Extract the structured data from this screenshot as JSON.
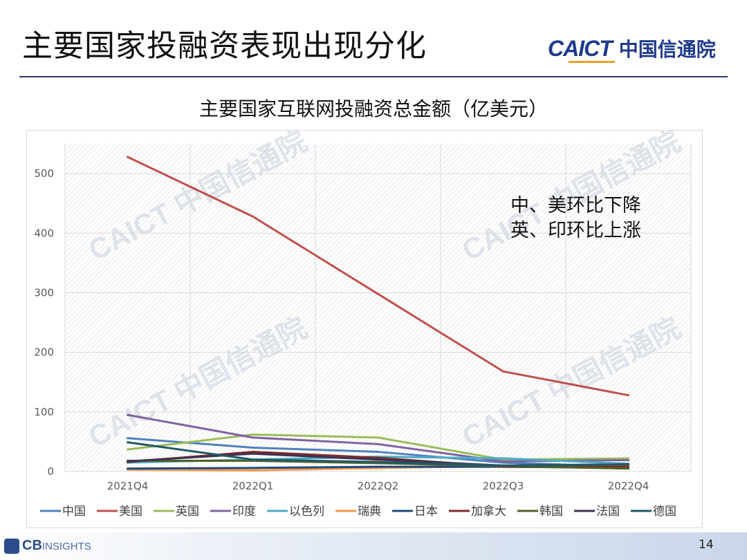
{
  "slide": {
    "title": "主要国家投融资表现出现分化",
    "logo": {
      "en": "CAICT",
      "cn": "中国信通院"
    },
    "page_number": "14",
    "source_logo": {
      "bold": "CB",
      "thin": "INSIGHTS"
    },
    "watermark": "CAICT 中国信通院",
    "annotation": [
      "中、美环比下降",
      "英、印环比上涨"
    ]
  },
  "colors": {
    "brand": "#1f3a8a",
    "accent": "#e8a020"
  },
  "chart_data": {
    "type": "line",
    "title": "主要国家互联网投融资总金额（亿美元）",
    "categories": [
      "2021Q4",
      "2022Q1",
      "2022Q2",
      "2022Q3",
      "2022Q4"
    ],
    "ylim": [
      0,
      550
    ],
    "yticks": [
      0,
      100,
      200,
      300,
      400,
      500
    ],
    "grid": true,
    "legend": "bottom",
    "series": [
      {
        "name": "中国",
        "color": "#4f81bd",
        "values": [
          56,
          40,
          33,
          15,
          8
        ]
      },
      {
        "name": "美国",
        "color": "#c0504d",
        "values": [
          528,
          428,
          298,
          168,
          128
        ]
      },
      {
        "name": "英国",
        "color": "#9bbb59",
        "values": [
          37,
          62,
          57,
          20,
          22
        ]
      },
      {
        "name": "印度",
        "color": "#8064a2",
        "values": [
          95,
          57,
          46,
          17,
          19
        ]
      },
      {
        "name": "以色列",
        "color": "#4bacc6",
        "values": [
          15,
          20,
          25,
          22,
          13
        ]
      },
      {
        "name": "瑞典",
        "color": "#f79646",
        "values": [
          3,
          2,
          6,
          9,
          10
        ]
      },
      {
        "name": "日本",
        "color": "#1f497d",
        "values": [
          5,
          6,
          8,
          8,
          6
        ]
      },
      {
        "name": "加拿大",
        "color": "#7f2b2b",
        "values": [
          16,
          33,
          23,
          8,
          8
        ]
      },
      {
        "name": "韩国",
        "color": "#4f6228",
        "values": [
          18,
          18,
          14,
          9,
          5
        ]
      },
      {
        "name": "法国",
        "color": "#3f3151",
        "values": [
          17,
          30,
          20,
          10,
          12
        ]
      },
      {
        "name": "德国",
        "color": "#215967",
        "values": [
          49,
          20,
          16,
          10,
          12
        ]
      }
    ]
  }
}
